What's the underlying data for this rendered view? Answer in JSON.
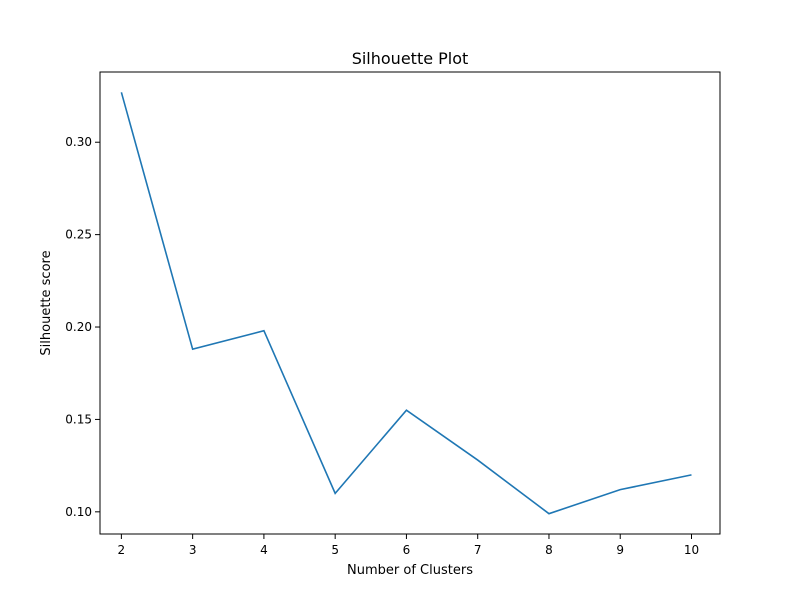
{
  "chart_data": {
    "type": "line",
    "title": "Silhouette Plot",
    "xlabel": "Number of Clusters",
    "ylabel": "Silhouette score",
    "x": [
      2,
      3,
      4,
      5,
      6,
      7,
      8,
      9,
      10
    ],
    "series": [
      {
        "values": [
          0.327,
          0.188,
          0.198,
          0.11,
          0.155,
          0.128,
          0.099,
          0.112,
          0.12
        ],
        "color": "#1f77b4"
      }
    ],
    "xlim": [
      1.7,
      10.4
    ],
    "ylim": [
      0.088,
      0.338
    ],
    "xticks": [
      "2",
      "3",
      "4",
      "5",
      "6",
      "7",
      "8",
      "9",
      "10"
    ],
    "yticks": [
      "0.10",
      "0.15",
      "0.20",
      "0.25",
      "0.30"
    ],
    "grid": false,
    "legend": "none"
  }
}
